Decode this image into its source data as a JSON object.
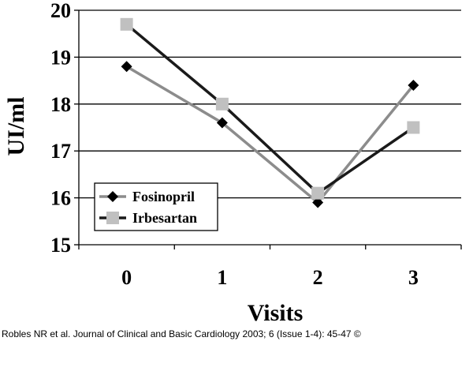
{
  "chart_data": {
    "type": "line",
    "title": "",
    "xlabel": "Visits",
    "ylabel": "UI/ml",
    "categories": [
      "0",
      "1",
      "2",
      "3"
    ],
    "ylim": [
      15,
      20
    ],
    "yticks": [
      "15",
      "16",
      "17",
      "18",
      "19",
      "20"
    ],
    "grid": true,
    "legend_position": "bottom-left",
    "series": [
      {
        "name": "Fosinopril",
        "values": [
          18.8,
          17.6,
          15.9,
          18.4
        ],
        "line_color": "#8c8c8c",
        "marker_color": "#000000",
        "marker": "diamond"
      },
      {
        "name": "Irbesartan",
        "values": [
          19.7,
          18.0,
          16.1,
          17.5
        ],
        "line_color": "#1a1a1a",
        "marker_color": "#c0c0c0",
        "marker": "square"
      }
    ]
  },
  "citation": "Robles NR et al. Journal of Clinical and Basic Cardiology 2003; 6 (Issue 1-4): 45-47 ©"
}
